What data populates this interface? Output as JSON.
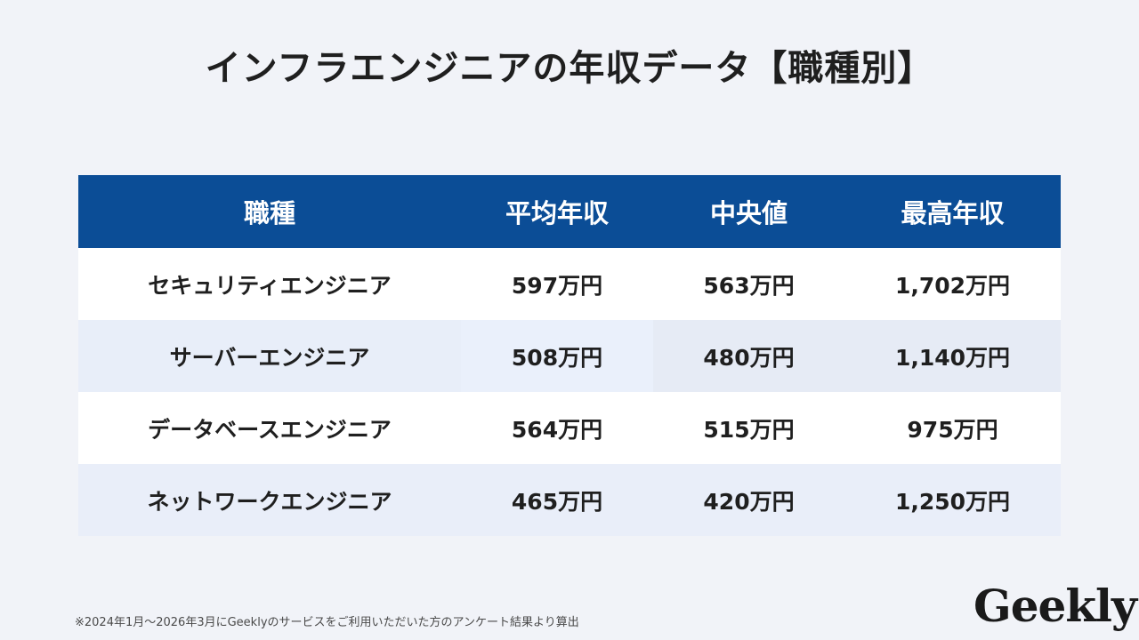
{
  "title": "インフラエンジニアの年収データ【職種別】",
  "table": {
    "headers": [
      "職種",
      "平均年収",
      "中央値",
      "最高年収"
    ],
    "rows": [
      [
        "セキュリティエンジニア",
        "597万円",
        "563万円",
        "1,702万円"
      ],
      [
        "サーバーエンジニア",
        "508万円",
        "480万円",
        "1,140万円"
      ],
      [
        "データベースエンジニア",
        "564万円",
        "515万円",
        "975万円"
      ],
      [
        "ネットワークエンジニア",
        "465万円",
        "420万円",
        "1,250万円"
      ]
    ]
  },
  "footnote": "※2024年1月〜2026年3月にGeeklyのサービスをご利用いただいた方のアンケート結果より算出",
  "logo": "Geekly",
  "colors": {
    "header_bg": "#0b4d96",
    "header_text": "#ffffff",
    "page_bg": "#f1f3f8",
    "row_alt_bg": "#e9eef9"
  }
}
